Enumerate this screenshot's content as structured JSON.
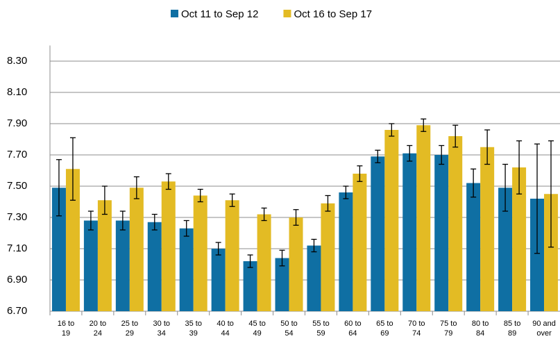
{
  "chart_data": {
    "type": "bar",
    "categories": [
      "16 to 19",
      "20 to 24",
      "25 to 29",
      "30 to 34",
      "35 to 39",
      "40 to 44",
      "45 to 49",
      "50 to 54",
      "55 to 59",
      "60 to 64",
      "65 to 69",
      "70 to 74",
      "75 to 79",
      "80 to 84",
      "85 to 89",
      "90 and over"
    ],
    "series": [
      {
        "name": "Oct 11 to Sep 12",
        "color": "#0f6fa3",
        "values": [
          7.49,
          7.28,
          7.28,
          7.27,
          7.23,
          7.1,
          7.02,
          7.04,
          7.12,
          7.46,
          7.69,
          7.71,
          7.7,
          7.52,
          7.49,
          7.42
        ],
        "errors": [
          0.18,
          0.06,
          0.06,
          0.05,
          0.05,
          0.04,
          0.04,
          0.05,
          0.04,
          0.04,
          0.04,
          0.05,
          0.06,
          0.09,
          0.15,
          0.35
        ]
      },
      {
        "name": "Oct 16 to Sep 17",
        "color": "#e3bb24",
        "values": [
          7.61,
          7.41,
          7.49,
          7.53,
          7.44,
          7.41,
          7.32,
          7.3,
          7.39,
          7.58,
          7.86,
          7.89,
          7.82,
          7.75,
          7.62,
          7.45
        ],
        "errors": [
          0.2,
          0.09,
          0.07,
          0.05,
          0.04,
          0.04,
          0.04,
          0.05,
          0.05,
          0.05,
          0.04,
          0.04,
          0.07,
          0.11,
          0.17,
          0.34
        ]
      }
    ],
    "ylim": [
      6.7,
      8.4
    ],
    "yticks": [
      {
        "value": 6.7,
        "label": "6.70"
      },
      {
        "value": 6.9,
        "label": "6.90"
      },
      {
        "value": 7.1,
        "label": "7.10"
      },
      {
        "value": 7.3,
        "label": "7.30"
      },
      {
        "value": 7.5,
        "label": "7.50"
      },
      {
        "value": 7.7,
        "label": "7.70"
      },
      {
        "value": 7.9,
        "label": "7.90"
      },
      {
        "value": 8.1,
        "label": "8.10"
      },
      {
        "value": 8.3,
        "label": "8.30"
      }
    ],
    "grid": true,
    "legend": "top"
  }
}
